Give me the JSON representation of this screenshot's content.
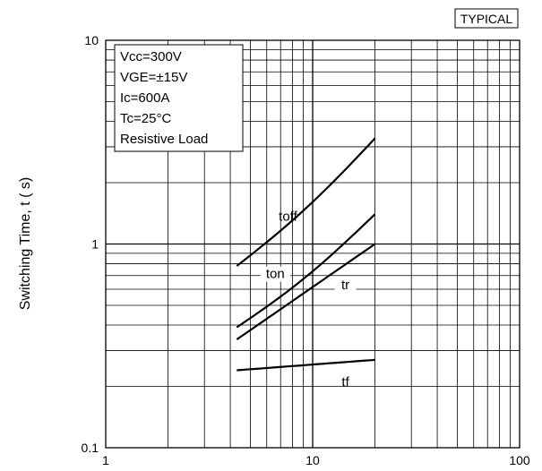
{
  "badge": "TYPICAL",
  "chart_data": {
    "type": "line",
    "title": "",
    "xlabel": "",
    "ylabel": "Switching Time, t ( s)",
    "x_scale": "log",
    "y_scale": "log",
    "xlim": [
      1,
      100
    ],
    "ylim": [
      0.1,
      10
    ],
    "grid": true,
    "x_tick_labels": [
      "1",
      "10",
      "100"
    ],
    "y_tick_labels": [
      "0.1",
      "1",
      "10"
    ],
    "conditions": [
      "Vcc=300V",
      "VGE=±15V",
      "Ic=600A",
      "Tc=25°C",
      "Resistive Load"
    ],
    "series": [
      {
        "name": "toff",
        "x": [
          4.3,
          20
        ],
        "y": [
          0.78,
          3.3
        ]
      },
      {
        "name": "ton",
        "x": [
          4.3,
          20
        ],
        "y": [
          0.39,
          1.4
        ]
      },
      {
        "name": "tr",
        "x": [
          4.3,
          20
        ],
        "y": [
          0.34,
          1.0
        ]
      },
      {
        "name": "tf",
        "x": [
          4.3,
          20
        ],
        "y": [
          0.24,
          0.27
        ]
      }
    ]
  }
}
